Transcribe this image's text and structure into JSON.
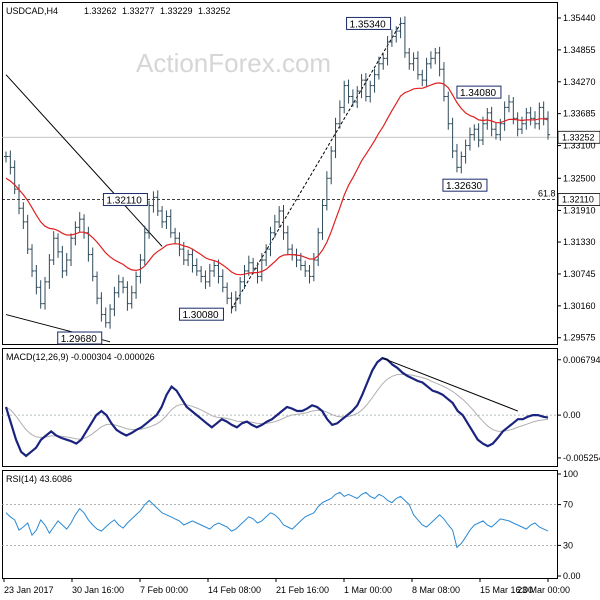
{
  "chart_data": {
    "type": "ohlc",
    "header": {
      "symbol": "USDCAD,H4",
      "open": "1.33262",
      "high": "1.33277",
      "low": "1.33229",
      "close": "1.33252"
    },
    "watermark": "ActionForex.com",
    "price_axis": {
      "ylim": [
        1.2946,
        1.3566
      ],
      "ticks": [
        "1.35440",
        "1.34855",
        "1.34270",
        "1.33685",
        "1.33100",
        "1.32500",
        "1.31910",
        "1.31330",
        "1.30745",
        "1.30160",
        "1.29575"
      ],
      "current_label": "1.33252",
      "level_label": "1.32110"
    },
    "x_axis": {
      "labels": [
        "23 Jan 2017",
        "30 Jan 16:00",
        "7 Feb 00:00",
        "14 Feb 08:00",
        "21 Feb 16:00",
        "1 Mar 00:00",
        "8 Mar 08:00",
        "15 Mar 16:00",
        "23 Mar 00:00"
      ]
    },
    "annotations": [
      {
        "label": "1.35340",
        "value": 1.3534
      },
      {
        "label": "1.34080",
        "value": 1.3408
      },
      {
        "label": "1.32630",
        "value": 1.3263
      },
      {
        "label": "1.32110",
        "value": 1.3211
      },
      {
        "label": "1.30080",
        "value": 1.3008
      },
      {
        "label": "1.29680",
        "value": 1.2968
      }
    ],
    "fib_label": "61.8",
    "price_close": [
      1.329,
      1.327,
      1.323,
      1.3195,
      1.317,
      1.312,
      1.308,
      1.305,
      1.302,
      1.306,
      1.31,
      1.314,
      1.3115,
      1.308,
      1.31,
      1.314,
      1.316,
      1.3175,
      1.315,
      1.311,
      1.307,
      1.303,
      1.3,
      1.2985,
      1.301,
      1.304,
      1.306,
      1.305,
      1.302,
      1.304,
      1.307,
      1.31,
      1.315,
      1.32,
      1.3215,
      1.319,
      1.317,
      1.318,
      1.315,
      1.314,
      1.312,
      1.31,
      1.311,
      1.309,
      1.308,
      1.307,
      1.306,
      1.308,
      1.309,
      1.307,
      1.305,
      1.303,
      1.3015,
      1.303,
      1.306,
      1.308,
      1.3095,
      1.3085,
      1.307,
      1.31,
      1.312,
      1.315,
      1.317,
      1.319,
      1.315,
      1.312,
      1.311,
      1.31,
      1.309,
      1.308,
      1.307,
      1.31,
      1.315,
      1.32,
      1.325,
      1.33,
      1.335,
      1.338,
      1.342,
      1.34,
      1.339,
      1.341,
      1.343,
      1.34,
      1.342,
      1.344,
      1.346,
      1.347,
      1.35,
      1.351,
      1.352,
      1.3534,
      1.348,
      1.346,
      1.347,
      1.344,
      1.343,
      1.346,
      1.347,
      1.348,
      1.345,
      1.34,
      1.335,
      1.33,
      1.327,
      1.329,
      1.331,
      1.333,
      1.334,
      1.332,
      1.335,
      1.337,
      1.334,
      1.333,
      1.335,
      1.338,
      1.339,
      1.336,
      1.334,
      1.335,
      1.337,
      1.336,
      1.335,
      1.338,
      1.336,
      1.333
    ],
    "ma_values": [
      1.325,
      1.3245,
      1.3238,
      1.3229,
      1.322,
      1.3209,
      1.3196,
      1.3182,
      1.317,
      1.3162,
      1.3158,
      1.3157,
      1.3154,
      1.3149,
      1.3146,
      1.3146,
      1.3148,
      1.3151,
      1.3151,
      1.3148,
      1.3141,
      1.3133,
      1.3123,
      1.3113,
      1.3106,
      1.31,
      1.3096,
      1.3092,
      1.3086,
      1.3082,
      1.3081,
      1.3083,
      1.3089,
      1.3099,
      1.3109,
      1.3116,
      1.3121,
      1.3127,
      1.3129,
      1.313,
      1.3129,
      1.3126,
      1.3124,
      1.312,
      1.3115,
      1.311,
      1.3104,
      1.3101,
      1.3099,
      1.3096,
      1.3091,
      1.3085,
      1.3078,
      1.3074,
      1.3073,
      1.3074,
      1.3076,
      1.3077,
      1.3077,
      1.3079,
      1.3083,
      1.309,
      1.3097,
      1.3105,
      1.3109,
      1.311,
      1.311,
      1.3109,
      1.3108,
      1.3105,
      1.3102,
      1.3102,
      1.3108,
      1.3118,
      1.3133,
      1.3152,
      1.3174,
      1.3196,
      1.3219,
      1.3237,
      1.3251,
      1.3266,
      1.3282,
      1.3294,
      1.3306,
      1.3319,
      1.3333,
      1.3345,
      1.336,
      1.3374,
      1.3387,
      1.3401,
      1.3407,
      1.341,
      1.3414,
      1.3415,
      1.3415,
      1.3418,
      1.3421,
      1.3424,
      1.3425,
      1.3423,
      1.3416,
      1.3403,
      1.3389,
      1.3378,
      1.337,
      1.3365,
      1.3362,
      1.3357,
      1.3356,
      1.3357,
      1.3355,
      1.3352,
      1.3352,
      1.3355,
      1.3358,
      1.3358,
      1.3357,
      1.3356,
      1.3357,
      1.3357,
      1.3357,
      1.3359,
      1.3359,
      1.3357
    ],
    "trendlines": [
      {
        "name": "upper-falling",
        "from": [
          0,
          1.344
        ],
        "to": [
          36,
          1.3125
        ]
      },
      {
        "name": "lower-falling",
        "from": [
          0,
          1.3
        ],
        "to": [
          24,
          1.295
        ]
      },
      {
        "name": "rising-dashed",
        "from": [
          52,
          1.301
        ],
        "to": [
          91,
          1.3534
        ]
      }
    ],
    "macd": {
      "label": "MACD(12,26,9) -0.000304 -0.000026",
      "ticks": [
        "0.006794",
        "0.00",
        "-0.005254"
      ],
      "ylim": [
        -0.006,
        0.0075
      ],
      "macd_values": [
        0.001,
        -0.001,
        -0.003,
        -0.0045,
        -0.005,
        -0.0045,
        -0.004,
        -0.003,
        -0.0025,
        -0.002,
        -0.0025,
        -0.0028,
        -0.003,
        -0.0032,
        -0.0035,
        -0.003,
        -0.002,
        -0.001,
        0.0,
        0.0005,
        0.0,
        -0.001,
        -0.0018,
        -0.0022,
        -0.0025,
        -0.0022,
        -0.0018,
        -0.0015,
        -0.001,
        -0.0005,
        0.0,
        0.001,
        0.0025,
        0.0035,
        0.003,
        0.002,
        0.001,
        0.0005,
        0.0,
        -0.0005,
        -0.001,
        -0.0015,
        -0.001,
        -0.0005,
        -0.0008,
        -0.0012,
        -0.0015,
        -0.001,
        -0.0008,
        -0.0012,
        -0.0015,
        -0.0012,
        -0.0008,
        -0.0005,
        0.0,
        0.0005,
        0.001,
        0.0008,
        0.0005,
        0.0005,
        0.0008,
        0.0012,
        0.001,
        0.0005,
        -0.0005,
        -0.0012,
        -0.001,
        -0.0005,
        0.0,
        0.0005,
        0.0012,
        0.0025,
        0.004,
        0.0055,
        0.0065,
        0.007,
        0.0068,
        0.0062,
        0.0058,
        0.0052,
        0.0048,
        0.0045,
        0.0042,
        0.004,
        0.0035,
        0.003,
        0.0028,
        0.0025,
        0.002,
        0.0015,
        0.0005,
        0.0,
        -0.001,
        -0.002,
        -0.003,
        -0.0035,
        -0.0038,
        -0.0035,
        -0.0028,
        -0.002,
        -0.0015,
        -0.001,
        -0.0005,
        -0.0005,
        -0.0002,
        0.0,
        0.0,
        -0.0002,
        -0.0003
      ]
    },
    "rsi": {
      "label": "RSI(14) 43.6086",
      "ticks": [
        "100",
        "70",
        "30",
        "0.00"
      ],
      "ylim": [
        0,
        100
      ],
      "values": [
        62,
        58,
        55,
        45,
        48,
        52,
        40,
        45,
        55,
        50,
        42,
        48,
        54,
        50,
        46,
        52,
        60,
        66,
        62,
        55,
        50,
        46,
        44,
        48,
        52,
        55,
        50,
        47,
        52,
        56,
        60,
        64,
        70,
        74,
        70,
        66,
        62,
        60,
        58,
        56,
        54,
        50,
        52,
        54,
        52,
        50,
        48,
        46,
        50,
        52,
        50,
        48,
        44,
        46,
        50,
        54,
        58,
        56,
        52,
        54,
        58,
        62,
        60,
        56,
        50,
        48,
        46,
        50,
        54,
        58,
        60,
        62,
        68,
        72,
        74,
        76,
        80,
        82,
        78,
        80,
        78,
        76,
        80,
        82,
        78,
        76,
        80,
        78,
        74,
        72,
        76,
        78,
        74,
        70,
        60,
        55,
        50,
        48,
        52,
        56,
        60,
        56,
        50,
        45,
        28,
        32,
        38,
        45,
        50,
        52,
        54,
        50,
        48,
        52,
        56,
        55,
        54,
        52,
        50,
        48,
        46,
        50,
        52,
        48,
        46,
        44
      ]
    }
  }
}
